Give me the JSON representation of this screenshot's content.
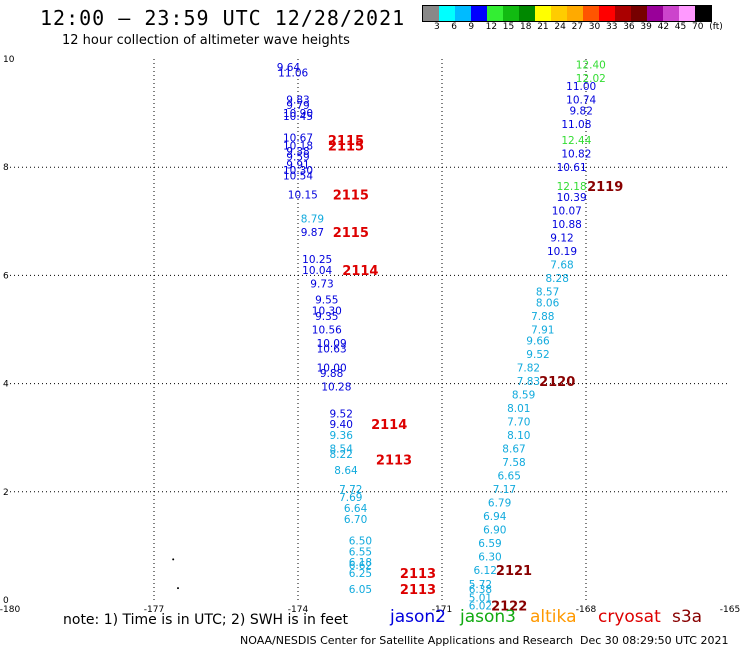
{
  "title": "12:00 — 23:59 UTC 12/28/2021",
  "subtitle": "12 hour collection of altimeter wave heights",
  "colorbar": {
    "colors": [
      "#888888",
      "#00ffff",
      "#00bbff",
      "#0000ff",
      "#33ee33",
      "#11bb11",
      "#008800",
      "#ffff00",
      "#ffcc00",
      "#ffaa00",
      "#ff5500",
      "#ff0000",
      "#aa0000",
      "#770000",
      "#990099",
      "#cc44cc",
      "#ff99ff",
      "#000000"
    ],
    "labels": [
      "3",
      "6",
      "9",
      "12",
      "15",
      "18",
      "21",
      "24",
      "27",
      "30",
      "33",
      "36",
      "39",
      "42",
      "45",
      "70",
      "(ft)"
    ]
  },
  "chart_data": {
    "type": "scatter",
    "xlim": [
      -180,
      -165
    ],
    "ylim": [
      0,
      10
    ],
    "x_ticks": [
      "-180",
      "-177",
      "-174",
      "-171",
      "-168",
      "-165"
    ],
    "y_ticks": [
      "0",
      "2",
      "4",
      "6",
      "8",
      "10"
    ],
    "grid": true,
    "series": [
      {
        "name": "jason2",
        "color": "#0000dd",
        "points": [
          {
            "lon": -174.2,
            "lat": 9.85,
            "label": "9.64"
          },
          {
            "lon": -174.1,
            "lat": 9.75,
            "label": "11.06"
          },
          {
            "lon": -174.0,
            "lat": 9.25,
            "label": "9.83"
          },
          {
            "lon": -174.0,
            "lat": 9.15,
            "label": "9.79"
          },
          {
            "lon": -174.0,
            "lat": 9.0,
            "label": "10.90"
          },
          {
            "lon": -174.0,
            "lat": 8.95,
            "label": "10.45"
          },
          {
            "lon": -174.0,
            "lat": 8.55,
            "label": "10.67"
          },
          {
            "lon": -174.0,
            "lat": 8.4,
            "label": "10.18"
          },
          {
            "lon": -174.0,
            "lat": 8.3,
            "label": "9.38"
          },
          {
            "lon": -174.0,
            "lat": 8.2,
            "label": "9.59"
          },
          {
            "lon": -174.0,
            "lat": 8.05,
            "label": "9.91"
          },
          {
            "lon": -174.0,
            "lat": 7.95,
            "label": "10.30"
          },
          {
            "lon": -174.0,
            "lat": 7.85,
            "label": "10.54"
          },
          {
            "lon": -173.9,
            "lat": 7.5,
            "label": "10.15"
          },
          {
            "lon": -173.7,
            "lat": 6.8,
            "label": "9.87"
          },
          {
            "lon": -173.6,
            "lat": 6.3,
            "label": "10.25"
          },
          {
            "lon": -173.6,
            "lat": 6.1,
            "label": "10.04"
          },
          {
            "lon": -173.5,
            "lat": 5.85,
            "label": "9.73"
          },
          {
            "lon": -173.4,
            "lat": 5.55,
            "label": "9.55"
          },
          {
            "lon": -173.4,
            "lat": 5.35,
            "label": "10.30"
          },
          {
            "lon": -173.4,
            "lat": 5.25,
            "label": "9.35"
          },
          {
            "lon": -173.4,
            "lat": 5.0,
            "label": "10.56"
          },
          {
            "lon": -173.3,
            "lat": 4.75,
            "label": "10.09"
          },
          {
            "lon": -173.3,
            "lat": 4.65,
            "label": "10.63"
          },
          {
            "lon": -173.3,
            "lat": 4.3,
            "label": "10.00"
          },
          {
            "lon": -173.3,
            "lat": 4.2,
            "label": "9.88"
          },
          {
            "lon": -173.2,
            "lat": 3.95,
            "label": "10.28"
          },
          {
            "lon": -173.1,
            "lat": 3.45,
            "label": "9.52"
          },
          {
            "lon": -173.1,
            "lat": 3.25,
            "label": "9.40"
          },
          {
            "lon": -168.1,
            "lat": 9.5,
            "label": "11.00"
          },
          {
            "lon": -168.1,
            "lat": 9.25,
            "label": "10.74"
          },
          {
            "lon": -168.1,
            "lat": 9.05,
            "label": "9.82"
          },
          {
            "lon": -168.2,
            "lat": 8.8,
            "label": "11.08"
          },
          {
            "lon": -168.2,
            "lat": 8.25,
            "label": "10.82"
          },
          {
            "lon": -168.3,
            "lat": 8.0,
            "label": "10.61"
          },
          {
            "lon": -168.3,
            "lat": 7.45,
            "label": "10.39"
          },
          {
            "lon": -168.4,
            "lat": 7.2,
            "label": "10.07"
          },
          {
            "lon": -168.4,
            "lat": 6.95,
            "label": "10.88"
          },
          {
            "lon": -168.5,
            "lat": 6.7,
            "label": "9.12"
          },
          {
            "lon": -168.5,
            "lat": 6.45,
            "label": "10.19"
          }
        ]
      },
      {
        "name": "jason3",
        "color": "#33dd33",
        "points": [
          {
            "lon": -167.9,
            "lat": 9.9,
            "label": "12.40"
          },
          {
            "lon": -167.9,
            "lat": 9.65,
            "label": "12.02"
          },
          {
            "lon": -168.2,
            "lat": 8.5,
            "label": "12.44"
          },
          {
            "lon": -168.3,
            "lat": 7.65,
            "label": "12.18"
          }
        ]
      },
      {
        "name": "cyan",
        "color": "#11aadd",
        "points": [
          {
            "lon": -173.7,
            "lat": 7.05,
            "label": "8.79"
          },
          {
            "lon": -173.1,
            "lat": 3.05,
            "label": "9.36"
          },
          {
            "lon": -173.1,
            "lat": 2.8,
            "label": "8.54"
          },
          {
            "lon": -173.1,
            "lat": 2.7,
            "label": "8.22"
          },
          {
            "lon": -173.0,
            "lat": 2.4,
            "label": "8.64"
          },
          {
            "lon": -172.9,
            "lat": 2.05,
            "label": "7.72"
          },
          {
            "lon": -172.9,
            "lat": 1.9,
            "label": "7.69"
          },
          {
            "lon": -172.8,
            "lat": 1.7,
            "label": "6.64"
          },
          {
            "lon": -172.8,
            "lat": 1.5,
            "label": "6.70"
          },
          {
            "lon": -172.7,
            "lat": 1.1,
            "label": "6.50"
          },
          {
            "lon": -172.7,
            "lat": 0.9,
            "label": "6.55"
          },
          {
            "lon": -172.7,
            "lat": 0.7,
            "label": "6.18"
          },
          {
            "lon": -172.7,
            "lat": 0.65,
            "label": "6.62"
          },
          {
            "lon": -172.7,
            "lat": 0.5,
            "label": "6.25"
          },
          {
            "lon": -172.7,
            "lat": 0.2,
            "label": "6.05"
          },
          {
            "lon": -168.5,
            "lat": 6.2,
            "label": "7.68"
          },
          {
            "lon": -168.6,
            "lat": 5.95,
            "label": "8.28"
          },
          {
            "lon": -168.8,
            "lat": 5.7,
            "label": "8.57"
          },
          {
            "lon": -168.8,
            "lat": 5.5,
            "label": "8.06"
          },
          {
            "lon": -168.9,
            "lat": 5.25,
            "label": "7.88"
          },
          {
            "lon": -168.9,
            "lat": 5.0,
            "label": "7.91"
          },
          {
            "lon": -169.0,
            "lat": 4.8,
            "label": "9.66"
          },
          {
            "lon": -169.0,
            "lat": 4.55,
            "label": "9.52"
          },
          {
            "lon": -169.2,
            "lat": 4.3,
            "label": "7.82"
          },
          {
            "lon": -169.2,
            "lat": 4.05,
            "label": "7.83"
          },
          {
            "lon": -169.3,
            "lat": 3.8,
            "label": "8.59"
          },
          {
            "lon": -169.4,
            "lat": 3.55,
            "label": "8.01"
          },
          {
            "lon": -169.4,
            "lat": 3.3,
            "label": "7.70"
          },
          {
            "lon": -169.4,
            "lat": 3.05,
            "label": "8.10"
          },
          {
            "lon": -169.5,
            "lat": 2.8,
            "label": "8.67"
          },
          {
            "lon": -169.5,
            "lat": 2.55,
            "label": "7.58"
          },
          {
            "lon": -169.6,
            "lat": 2.3,
            "label": "6.65"
          },
          {
            "lon": -169.7,
            "lat": 2.05,
            "label": "7.17"
          },
          {
            "lon": -169.8,
            "lat": 1.8,
            "label": "6.79"
          },
          {
            "lon": -169.9,
            "lat": 1.55,
            "label": "6.94"
          },
          {
            "lon": -169.9,
            "lat": 1.3,
            "label": "6.90"
          },
          {
            "lon": -170.0,
            "lat": 1.05,
            "label": "6.59"
          },
          {
            "lon": -170.0,
            "lat": 0.8,
            "label": "6.30"
          },
          {
            "lon": -170.1,
            "lat": 0.55,
            "label": "6.12"
          },
          {
            "lon": -170.2,
            "lat": 0.3,
            "label": "5.72"
          },
          {
            "lon": -170.2,
            "lat": 0.2,
            "label": "6.38"
          },
          {
            "lon": -170.2,
            "lat": 0.05,
            "label": "5.01"
          },
          {
            "lon": -170.2,
            "lat": -0.1,
            "label": "6.02"
          }
        ]
      }
    ],
    "passes": [
      {
        "time": "2115",
        "color": "#dd0000",
        "lon": -173.0,
        "lat": 8.5
      },
      {
        "time": "2115",
        "color": "#dd0000",
        "lon": -173.0,
        "lat": 8.4
      },
      {
        "time": "2115",
        "color": "#dd0000",
        "lon": -172.9,
        "lat": 7.5
      },
      {
        "time": "2115",
        "color": "#dd0000",
        "lon": -172.9,
        "lat": 6.8
      },
      {
        "time": "2114",
        "color": "#dd0000",
        "lon": -172.7,
        "lat": 6.1
      },
      {
        "time": "2114",
        "color": "#dd0000",
        "lon": -172.1,
        "lat": 3.25
      },
      {
        "time": "2113",
        "color": "#dd0000",
        "lon": -172.0,
        "lat": 2.6
      },
      {
        "time": "2113",
        "color": "#dd0000",
        "lon": -171.5,
        "lat": 0.5
      },
      {
        "time": "2113",
        "color": "#dd0000",
        "lon": -171.5,
        "lat": 0.2
      },
      {
        "time": "2119",
        "color": "#880000",
        "lon": -167.6,
        "lat": 7.65
      },
      {
        "time": "2120",
        "color": "#880000",
        "lon": -168.6,
        "lat": 4.05
      },
      {
        "time": "2121",
        "color": "#880000",
        "lon": -169.5,
        "lat": 0.55
      },
      {
        "time": "2122",
        "color": "#880000",
        "lon": -169.6,
        "lat": -0.1
      }
    ],
    "dots": [
      {
        "lon": -176.6,
        "lat": 0.75
      },
      {
        "lon": -176.5,
        "lat": 0.22
      }
    ]
  },
  "note": "note:  1) Time is in UTC; 2) SWH is in feet",
  "missions": [
    {
      "label": "jason2",
      "color": "#0000dd"
    },
    {
      "label": "jason3",
      "color": "#11aa11"
    },
    {
      "label": "altika",
      "color": "#ff9900"
    },
    {
      "label": "cryosat",
      "color": "#dd0000"
    },
    {
      "label": "s3a",
      "color": "#880000"
    }
  ],
  "credit": "NOAA/NESDIS Center for Satellite Applications and Research",
  "timestamp": "Dec 30 08:29:50 UTC 2021"
}
